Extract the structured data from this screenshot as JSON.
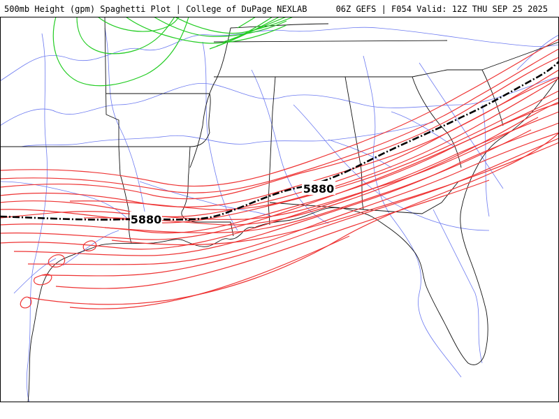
{
  "header": {
    "left_title": "500mb Height (gpm) Spaghetti Plot | College of DuPage NEXLAB",
    "right_title": "06Z GEFS | F054 Valid: 12Z THU SEP 25 2025"
  },
  "map": {
    "contour_labels": [
      "5880",
      "5880"
    ],
    "colors": {
      "ensemble_member": "#ee3333",
      "ensemble_5820": "#22cc22",
      "mean_line": "#000000",
      "state_borders": "#000000",
      "highways": "#5b6bef",
      "background": "#ffffff"
    },
    "layers": [
      "state-borders",
      "coastline",
      "interstate-highways",
      "ensemble-members-5880",
      "ensemble-members-5820",
      "ensemble-mean-5880"
    ]
  }
}
